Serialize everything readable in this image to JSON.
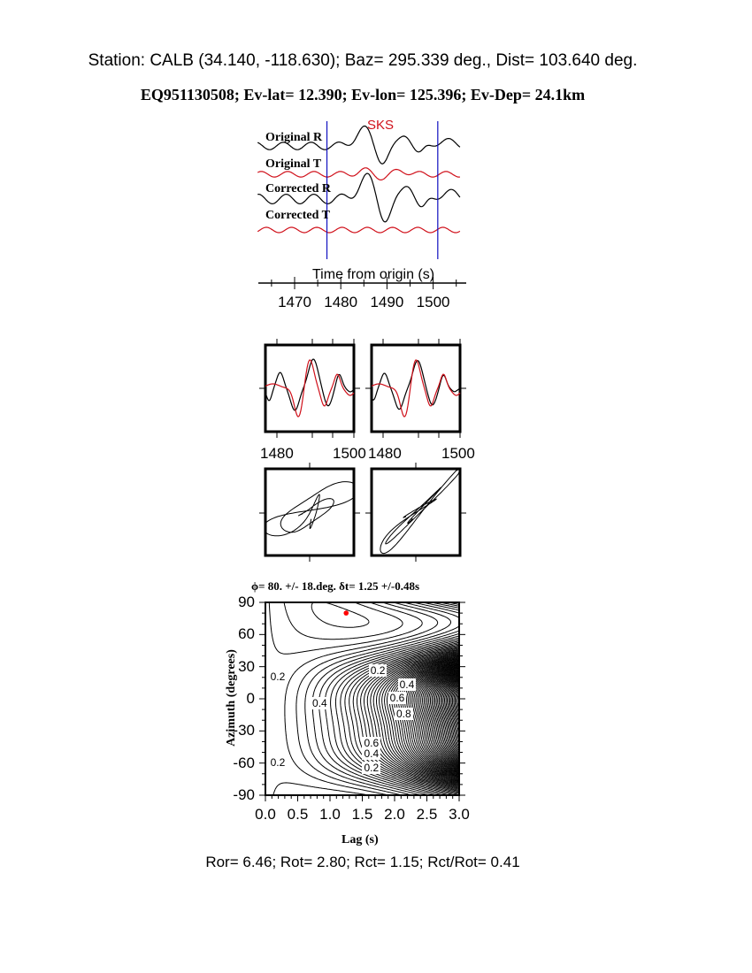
{
  "header": {
    "station_line": "Station: CALB (34.140, -118.630); Baz=  295.339 deg., Dist=  103.640 deg.",
    "event_line": "EQ951130508; Ev-lat=  12.390; Ev-lon= 125.396; Ev-Dep= 24.1km"
  },
  "colors": {
    "radial": "#000000",
    "transverse": "#d0101a",
    "window": "#1010c0",
    "best_fit": "#ff0000"
  },
  "chart_data": [
    {
      "type": "line",
      "id": "seismograms",
      "phase_label": "SKS",
      "trace_labels": [
        "Original R",
        "Original T",
        "Corrected R",
        "Corrected T"
      ],
      "xlabel": "Time from origin (s)",
      "xlim": [
        1462,
        1506
      ],
      "xticks": [
        "1470",
        "1480",
        "1490",
        "1500"
      ],
      "window": [
        1477,
        1501
      ]
    },
    {
      "type": "line",
      "id": "waveform-comparison",
      "panels": [
        {
          "xticks": [
            "1480",
            "1500"
          ]
        },
        {
          "xticks": [
            "1480",
            "1500"
          ]
        }
      ]
    },
    {
      "type": "line",
      "id": "particle-motion",
      "panels": [
        "original",
        "corrected"
      ]
    },
    {
      "type": "heatmap",
      "id": "energy-contour",
      "title": "ϕ= 80. +/- 18.deg. δt= 1.25 +/-0.48s",
      "xlabel": "Lag (s)",
      "ylabel": "Azimuth (degrees)",
      "xlim": [
        0,
        3
      ],
      "ylim": [
        -90,
        90
      ],
      "xticks": [
        "0.0",
        "0.5",
        "1.0",
        "1.5",
        "2.0",
        "2.5",
        "3.0"
      ],
      "yticks": [
        "90",
        "60",
        "30",
        "0",
        "-30",
        "-60",
        "-90"
      ],
      "contour_labels": [
        {
          "text": "0.2",
          "lag": 0.2,
          "az": 20
        },
        {
          "text": "0.2",
          "lag": 1.75,
          "az": 26
        },
        {
          "text": "0.4",
          "lag": 2.2,
          "az": 12
        },
        {
          "text": "0.6",
          "lag": 2.05,
          "az": 0
        },
        {
          "text": "0.4",
          "lag": 0.85,
          "az": -5
        },
        {
          "text": "0.8",
          "lag": 2.15,
          "az": -15
        },
        {
          "text": "0.6",
          "lag": 1.65,
          "az": -42
        },
        {
          "text": "0.4",
          "lag": 1.65,
          "az": -52
        },
        {
          "text": "0.2",
          "lag": 1.65,
          "az": -65
        },
        {
          "text": "0.2",
          "lag": 0.2,
          "az": -60
        }
      ],
      "best_fit": {
        "lag": 1.25,
        "az": 80
      }
    }
  ],
  "footer": {
    "ratios": "Ror= 6.46; Rot= 2.80; Rct= 1.15; Rct/Rot= 0.41"
  }
}
